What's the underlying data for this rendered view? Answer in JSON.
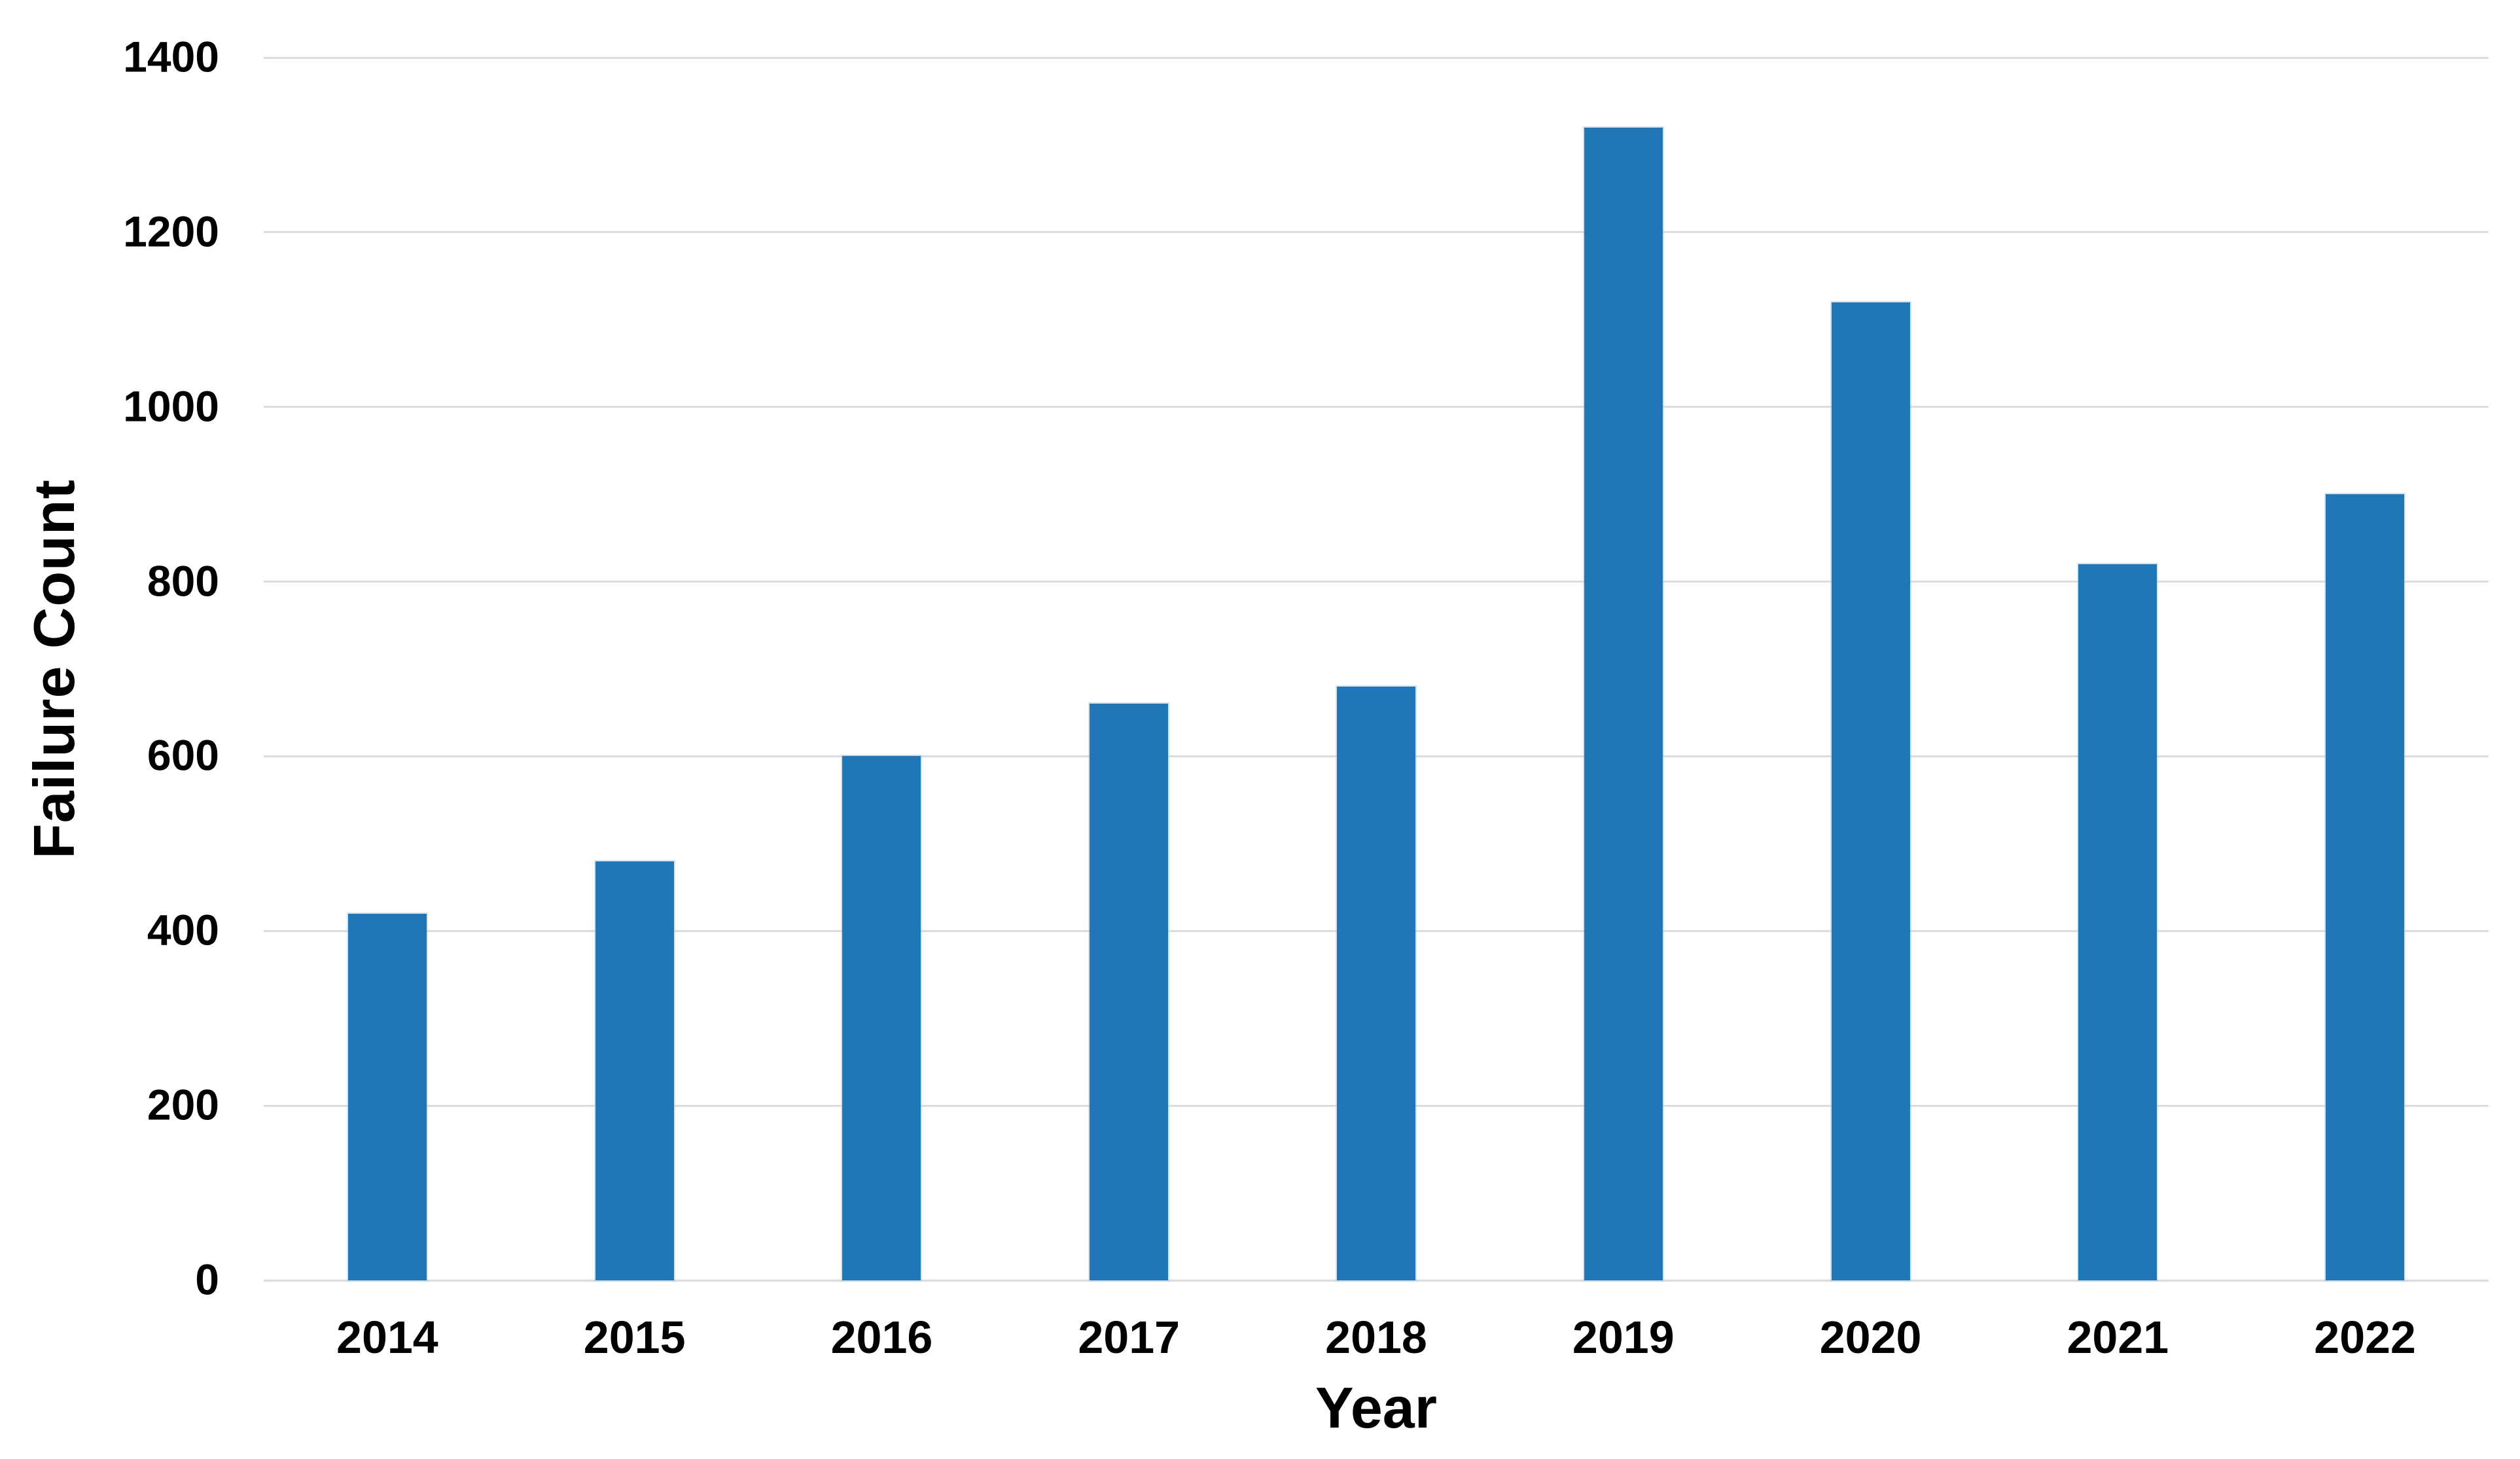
{
  "page": {
    "background": "#ffffff",
    "text_color": "#000000"
  },
  "chart_data": {
    "type": "bar",
    "title": "",
    "xlabel": "Year",
    "ylabel": "Failure Count",
    "categories": [
      "2014",
      "2015",
      "2016",
      "2017",
      "2018",
      "2019",
      "2020",
      "2021",
      "2022"
    ],
    "values": [
      420,
      480,
      600,
      660,
      680,
      1320,
      1120,
      820,
      900
    ],
    "yticks": [
      0,
      200,
      400,
      600,
      800,
      1000,
      1200,
      1400
    ],
    "ylim": [
      0,
      1400
    ],
    "grid": true,
    "legend": false,
    "bar_color": "#2176b5",
    "gridline_color": "#dcdcdc",
    "label_color": "#000000"
  }
}
